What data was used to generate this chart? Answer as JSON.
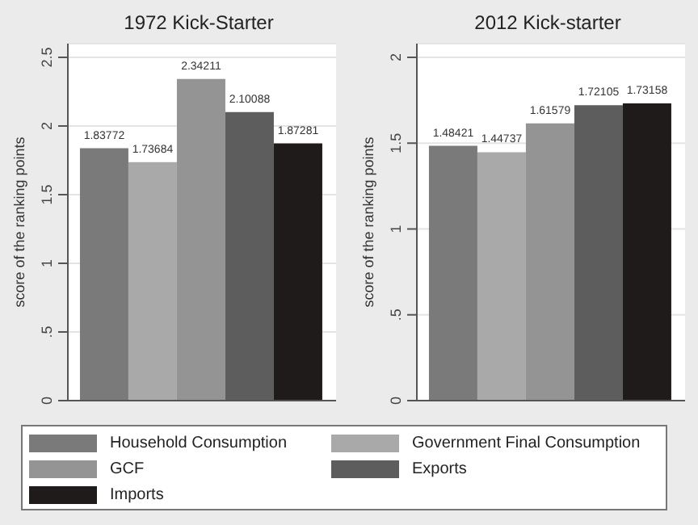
{
  "chart_data": [
    {
      "type": "bar",
      "title": "1972 Kick-Starter",
      "ylabel": "score of the ranking points",
      "categories": [
        null
      ],
      "series": [
        {
          "name": "Household Consumption",
          "color": "#7a7a7a",
          "values": [
            1.83772
          ]
        },
        {
          "name": "Government Final Consumption",
          "color": "#a9a9a9",
          "values": [
            1.73684
          ]
        },
        {
          "name": "GCF",
          "color": "#949494",
          "values": [
            2.34211
          ]
        },
        {
          "name": "Exports",
          "color": "#5d5d5d",
          "values": [
            2.10088
          ]
        },
        {
          "name": "Imports",
          "color": "#1f1b1b",
          "values": [
            1.87281
          ]
        }
      ],
      "ylim": [
        0,
        2.6
      ],
      "yticks": [
        0,
        {
          "value": 0.5,
          "label": ".5"
        },
        1,
        1.5,
        2,
        2.5
      ],
      "grid": "y",
      "data_labels": true,
      "legend": "bottom"
    },
    {
      "type": "bar",
      "title": "2012 Kick-starter",
      "ylabel": "score of the ranking points",
      "categories": [
        null
      ],
      "series": [
        {
          "name": "Household Consumption",
          "color": "#7a7a7a",
          "values": [
            1.48421
          ]
        },
        {
          "name": "Government Final Consumption",
          "color": "#a9a9a9",
          "values": [
            1.44737
          ]
        },
        {
          "name": "GCF",
          "color": "#949494",
          "values": [
            1.61579
          ]
        },
        {
          "name": "Exports",
          "color": "#5d5d5d",
          "values": [
            1.72105
          ]
        },
        {
          "name": "Imports",
          "color": "#1f1b1b",
          "values": [
            1.73158
          ]
        }
      ],
      "ylim": [
        0,
        2.08
      ],
      "yticks": [
        0,
        {
          "value": 0.5,
          "label": ".5"
        },
        1,
        1.5,
        2
      ],
      "grid": "y",
      "data_labels": true,
      "legend": "bottom"
    }
  ]
}
